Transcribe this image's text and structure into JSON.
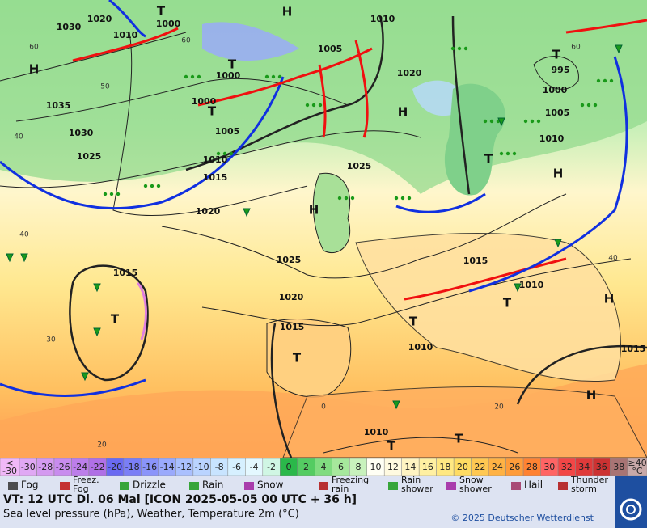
{
  "map": {
    "pressure_labels": [
      "1020",
      "1030",
      "1010",
      "1000",
      "1035",
      "1030",
      "1025",
      "1000",
      "1005",
      "1010",
      "1015",
      "1020",
      "1025",
      "1020",
      "1015",
      "1015",
      "1010",
      "1010",
      "1015",
      "1010",
      "1025",
      "1020",
      "1010",
      "1005",
      "1000",
      "995",
      "1000",
      "1005",
      "1010",
      "1015"
    ],
    "high_labels": [
      "H",
      "H",
      "H",
      "H",
      "H",
      "H",
      "H"
    ],
    "low_labels": [
      "T",
      "T",
      "T",
      "T",
      "T",
      "T",
      "T",
      "T",
      "T",
      "T",
      "T"
    ],
    "temperature_labels": [
      "60",
      "60",
      "50",
      "40",
      "40",
      "30",
      "20",
      "20",
      "0",
      "60",
      "40"
    ]
  },
  "colorbar": {
    "low_end": {
      "line1": "<",
      "line2": "-30"
    },
    "steps": [
      "-30",
      "-28",
      "-26",
      "-24",
      "-22",
      "-20",
      "-18",
      "-16",
      "-14",
      "-12",
      "-10",
      "-8",
      "-6",
      "-4",
      "-2",
      "0",
      "2",
      "4",
      "6",
      "8",
      "10",
      "12",
      "14",
      "16",
      "18",
      "20",
      "22",
      "24",
      "26",
      "28",
      "30",
      "32",
      "34",
      "36",
      "38"
    ],
    "high_end": {
      "line1": "≥40",
      "line2": "°C"
    }
  },
  "legend": [
    {
      "lines": [
        "Fog"
      ]
    },
    {
      "lines": [
        "Freez.",
        "Fog"
      ]
    },
    {
      "lines": [
        "Drizzle"
      ]
    },
    {
      "lines": [
        "Rain"
      ]
    },
    {
      "lines": [
        "Snow"
      ]
    },
    {
      "lines": [
        "Freezing",
        "rain"
      ]
    },
    {
      "lines": [
        "Rain",
        "shower"
      ]
    },
    {
      "lines": [
        "Snow",
        "shower"
      ]
    },
    {
      "lines": [
        "Hail"
      ]
    },
    {
      "lines": [
        "Thunder",
        "storm"
      ]
    }
  ],
  "footer": {
    "valid_time": "VT: 12 UTC Di.  06 Mai [ICON 2025-05-05  00 UTC + 36 h]",
    "description": "Sea level pressure (hPa), Weather, Temperature 2m (°C)",
    "copyright": "© 2025 Deutscher Wetterdienst",
    "logo": "DWD"
  }
}
